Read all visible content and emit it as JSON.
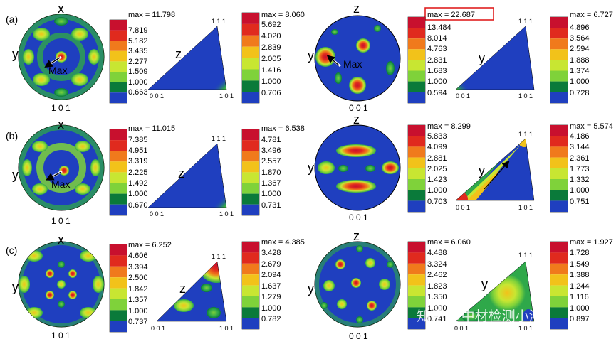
{
  "colors": {
    "background": "#1f3fbf",
    "scale": [
      "#1f3fbf",
      "#0a7a3a",
      "#2fa84a",
      "#7fd23a",
      "#c8e632",
      "#f2c21a",
      "#f07a1c",
      "#e02a1e",
      "#c8102e"
    ],
    "highlight_box": "#e02020"
  },
  "panel_labels": [
    "(a)",
    "(b)",
    "(c)"
  ],
  "rows": [
    {
      "label": "(a)",
      "pole_left": {
        "top": "x",
        "side": "y",
        "bottom": "1 0 1",
        "pointer": "Max"
      },
      "scale_left": {
        "max": "max = 11.798",
        "values": [
          "7.819",
          "5.182",
          "3.435",
          "2.277",
          "1.509",
          "1.000",
          "0.663"
        ]
      },
      "ipf_left": {
        "axis": "z",
        "top": "1 1 1",
        "bl": "0 0 1",
        "br": "1 0 1"
      },
      "scale_left2": {
        "max": "max = 8.060",
        "values": [
          "5.692",
          "4.020",
          "2.839",
          "2.005",
          "1.416",
          "1.000",
          "0.706"
        ]
      },
      "pole_right": {
        "top": "z",
        "side": "y",
        "bottom": "0 0 1",
        "pointer": "Max"
      },
      "scale_right": {
        "max": "max = 22.687",
        "values": [
          "13.484",
          "8.014",
          "4.763",
          "2.831",
          "1.683",
          "1.000",
          "0.594"
        ],
        "boxed": true
      },
      "ipf_right": {
        "axis": "y",
        "top": "1 1 1",
        "bl": "0 0 1",
        "br": "1 0 1"
      },
      "scale_right2": {
        "max": "max = 6.727",
        "values": [
          "4.896",
          "3.564",
          "2.594",
          "1.888",
          "1.374",
          "1.000",
          "0.728"
        ]
      }
    },
    {
      "label": "(b)",
      "pole_left": {
        "top": "x",
        "side": "y",
        "bottom": "1 0 1",
        "pointer": "Max"
      },
      "scale_left": {
        "max": "max = 11.015",
        "values": [
          "7.385",
          "4.951",
          "3.319",
          "2.225",
          "1.492",
          "1.000",
          "0.670"
        ]
      },
      "ipf_left": {
        "axis": "z",
        "top": "1 1 1",
        "bl": "0 0 1",
        "br": "1 0 1"
      },
      "scale_left2": {
        "max": "max = 6.538",
        "values": [
          "4.781",
          "3.496",
          "2.557",
          "1.870",
          "1.367",
          "1.000",
          "0.731"
        ]
      },
      "pole_right": {
        "top": "z",
        "side": "y",
        "bottom": "0 0 1",
        "pointer": ""
      },
      "scale_right": {
        "max": "max = 8.299",
        "values": [
          "5.833",
          "4.099",
          "2.881",
          "2.025",
          "1.423",
          "1.000",
          "0.703"
        ],
        "boxed": false
      },
      "ipf_right": {
        "axis": "y",
        "top": "1 1 1",
        "bl": "0 0 1",
        "br": "1 0 1"
      },
      "scale_right2": {
        "max": "max = 5.574",
        "values": [
          "4.186",
          "3.144",
          "2.361",
          "1.773",
          "1.332",
          "1.000",
          "0.751"
        ]
      }
    },
    {
      "label": "(c)",
      "pole_left": {
        "top": "x",
        "side": "y",
        "bottom": "1 0 1",
        "pointer": ""
      },
      "scale_left": {
        "max": "max = 6.252",
        "values": [
          "4.606",
          "3.394",
          "2.500",
          "1.842",
          "1.357",
          "1.000",
          "0.737"
        ]
      },
      "ipf_left": {
        "axis": "z",
        "top": "1 1 1",
        "bl": "0 0 1",
        "br": "1 0 1"
      },
      "scale_left2": {
        "max": "max = 4.385",
        "values": [
          "3.428",
          "2.679",
          "2.094",
          "1.637",
          "1.279",
          "1.000",
          "0.782"
        ]
      },
      "pole_right": {
        "top": "z",
        "side": "y",
        "bottom": "0 0 1",
        "pointer": ""
      },
      "scale_right": {
        "max": "max = 6.060",
        "values": [
          "4.488",
          "3.324",
          "2.462",
          "1.823",
          "1.350",
          "1.000",
          "0.741"
        ],
        "boxed": false
      },
      "ipf_right": {
        "axis": "y",
        "top": "1 1 1",
        "bl": "0 0 1",
        "br": "1 0 1"
      },
      "scale_right2": {
        "max": "max = 1.927",
        "values": [
          "1.728",
          "1.549",
          "1.388",
          "1.244",
          "1.116",
          "1.000",
          "0.897"
        ]
      }
    }
  ],
  "watermark": "知乎 @中材检测小沁"
}
